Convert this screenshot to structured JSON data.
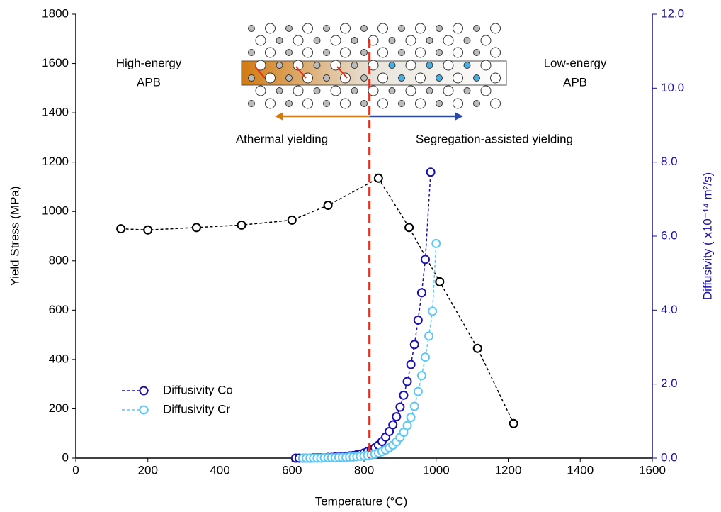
{
  "chart_data": {
    "type": "line",
    "xlabel": "Temperature (°C)",
    "ylabel": "Yield Stress (MPa)",
    "y2label": "Diffusivity ( x10⁻¹⁴ m²/s)",
    "xlim": [
      0,
      1600
    ],
    "xticks": [
      0,
      200,
      400,
      600,
      800,
      1000,
      1200,
      1400,
      1600
    ],
    "ylim": [
      0,
      1800
    ],
    "yticks": [
      0,
      200,
      400,
      600,
      800,
      1000,
      1200,
      1400,
      1600,
      1800
    ],
    "y2lim": [
      0,
      12
    ],
    "y2ticks": [
      {
        "value": 0,
        "label": "0.0"
      },
      {
        "value": 2,
        "label": "2.0"
      },
      {
        "value": 4,
        "label": "4.0"
      },
      {
        "value": 6,
        "label": "6.0"
      },
      {
        "value": 8,
        "label": "8.0"
      },
      {
        "value": 10,
        "label": "10.0"
      },
      {
        "value": 12,
        "label": "12.0"
      }
    ],
    "legend": "lower left",
    "vline": 815,
    "annotations": {
      "high": [
        "High-energy",
        "APB"
      ],
      "low": [
        "Low-energy",
        "APB"
      ],
      "left_arrow": "Athermal yielding",
      "right_arrow": "Segregation-assisted yielding"
    },
    "series": [
      {
        "color": "#000000",
        "x": [
          125,
          200,
          335,
          460,
          600,
          700,
          840,
          925,
          1010,
          1115,
          1215
        ],
        "values": [
          930,
          925,
          935,
          945,
          965,
          1025,
          1135,
          935,
          715,
          445,
          140
        ]
      },
      {
        "name": "Diffusivity Co",
        "color": "#1a0fa8",
        "axis": "y2",
        "x": [
          610,
          620,
          630,
          640,
          650,
          660,
          670,
          680,
          690,
          700,
          710,
          720,
          730,
          740,
          750,
          760,
          770,
          780,
          790,
          800,
          810,
          820,
          830,
          840,
          850,
          860,
          870,
          880,
          890,
          900,
          910,
          920,
          930,
          940,
          950,
          960,
          970,
          985
        ],
        "values": [
          0.0,
          0.0,
          0.0,
          0.0,
          0.0,
          0.01,
          0.01,
          0.01,
          0.01,
          0.02,
          0.02,
          0.03,
          0.03,
          0.04,
          0.05,
          0.06,
          0.07,
          0.09,
          0.11,
          0.14,
          0.18,
          0.22,
          0.28,
          0.35,
          0.45,
          0.57,
          0.72,
          0.9,
          1.12,
          1.38,
          1.7,
          2.07,
          2.53,
          3.07,
          3.73,
          4.47,
          5.37,
          7.73
        ]
      },
      {
        "name": "Diffusivity Cr",
        "color": "#5bc8f5",
        "axis": "y2",
        "x": [
          630,
          640,
          650,
          660,
          670,
          680,
          690,
          700,
          710,
          720,
          730,
          740,
          750,
          760,
          770,
          780,
          790,
          800,
          810,
          820,
          830,
          840,
          850,
          860,
          870,
          880,
          890,
          900,
          910,
          920,
          930,
          940,
          950,
          960,
          970,
          980,
          990,
          1000
        ],
        "values": [
          0.0,
          0.0,
          0.0,
          0.0,
          0.0,
          0.0,
          0.01,
          0.01,
          0.01,
          0.01,
          0.02,
          0.02,
          0.02,
          0.03,
          0.03,
          0.04,
          0.05,
          0.06,
          0.07,
          0.09,
          0.11,
          0.14,
          0.18,
          0.22,
          0.28,
          0.35,
          0.44,
          0.56,
          0.7,
          0.88,
          1.1,
          1.4,
          1.8,
          2.23,
          2.73,
          3.3,
          3.97,
          5.8
        ]
      }
    ]
  }
}
